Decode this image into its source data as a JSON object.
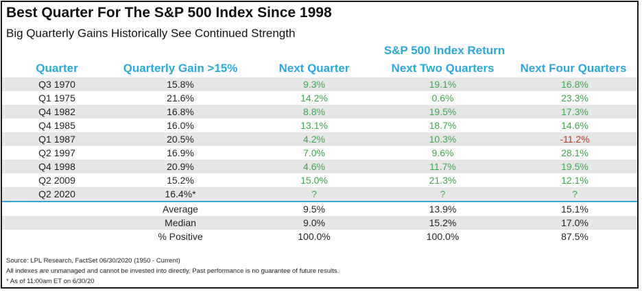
{
  "title": "Best Quarter For The S&P 500 Index Since 1998",
  "subtitle": "Big Quarterly Gains Historically See Continued Strength",
  "group_header": "S&P 500 Index Return",
  "columns": [
    "Quarter",
    "Quarterly Gain >15%",
    "Next Quarter",
    "Next Two Quarters",
    "Next Four Quarters"
  ],
  "rows": [
    {
      "quarter": "Q3 1970",
      "gain": "15.8%",
      "next_q": "9.3%",
      "next_two": "19.1%",
      "next_four": "16.8%"
    },
    {
      "quarter": "Q1 1975",
      "gain": "21.6%",
      "next_q": "14.2%",
      "next_two": "0.6%",
      "next_four": "23.3%"
    },
    {
      "quarter": "Q4 1982",
      "gain": "16.8%",
      "next_q": "8.8%",
      "next_two": "19.5%",
      "next_four": "17.3%"
    },
    {
      "quarter": "Q4 1985",
      "gain": "16.0%",
      "next_q": "13.1%",
      "next_two": "18.7%",
      "next_four": "14.6%"
    },
    {
      "quarter": "Q1 1987",
      "gain": "20.5%",
      "next_q": "4.2%",
      "next_two": "10.3%",
      "next_four": "-11.2%"
    },
    {
      "quarter": "Q2 1997",
      "gain": "16.9%",
      "next_q": "7.0%",
      "next_two": "9.6%",
      "next_four": "28.1%"
    },
    {
      "quarter": "Q4 1998",
      "gain": "20.9%",
      "next_q": "4.6%",
      "next_two": "11.7%",
      "next_four": "19.5%"
    },
    {
      "quarter": "Q2 2009",
      "gain": "15.2%",
      "next_q": "15.0%",
      "next_two": "21.3%",
      "next_four": "12.1%"
    },
    {
      "quarter": "Q2 2020",
      "gain": "16.4%*",
      "next_q": "?",
      "next_two": "?",
      "next_four": "?"
    }
  ],
  "summary": [
    {
      "label": "Average",
      "next_q": "9.5%",
      "next_two": "13.9%",
      "next_four": "15.1%"
    },
    {
      "label": "Median",
      "next_q": "9.0%",
      "next_two": "15.2%",
      "next_four": "17.0%"
    },
    {
      "label": "% Positive",
      "next_q": "100.0%",
      "next_two": "100.0%",
      "next_four": "87.5%"
    }
  ],
  "footnotes": {
    "source": "Source: LPL Research, FactSet 06/30/2020 (1950 - Current)",
    "disclaimer": "All indexes are unmanaged and cannot be invested into directly. Past performance is no guarantee of future results.",
    "asterisk": "* As of 11:00am ET on 6/30/20"
  },
  "colors": {
    "header": "#29a9dc",
    "positive": "#3aa84a",
    "negative": "#c0392b",
    "shade": "#e6e6e6"
  }
}
